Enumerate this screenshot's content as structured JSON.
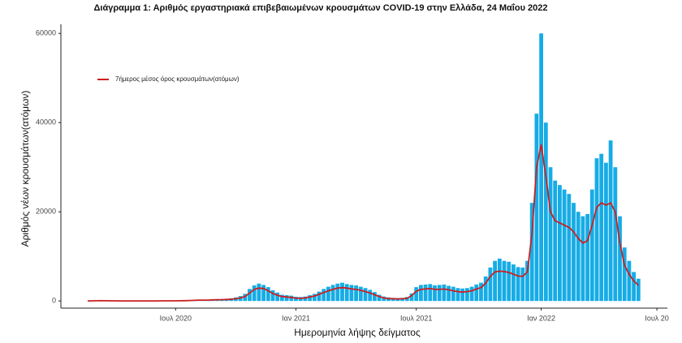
{
  "chart_data": {
    "type": "bar",
    "title": "Διάγραμμα 1: Αριθμός εργαστηριακά επιβεβαιωμένων κρουσμάτων COVID-19 στην Ελλάδα, 24 Μαΐου 2022",
    "x_label": "Ημερομηνία λήψης δείγματος",
    "y_label": "Αριθμός νέων κρουσμάτων(ατόμων)",
    "categories": [
      null,
      null,
      null,
      null,
      null,
      null,
      null,
      null,
      null,
      null,
      null,
      null,
      null,
      null,
      null,
      null,
      null,
      null,
      null,
      "Ιουλ 2020",
      null,
      null,
      null,
      null,
      null,
      null,
      null,
      null,
      null,
      null,
      null,
      null,
      null,
      null,
      null,
      null,
      null,
      null,
      null,
      null,
      null,
      null,
      null,
      null,
      null,
      "Ιαν 2021",
      null,
      null,
      null,
      null,
      null,
      null,
      null,
      null,
      null,
      null,
      null,
      null,
      null,
      null,
      null,
      null,
      null,
      null,
      null,
      null,
      null,
      null,
      null,
      null,
      null,
      "Ιουλ 2021",
      null,
      null,
      null,
      null,
      null,
      null,
      null,
      null,
      null,
      null,
      null,
      null,
      null,
      null,
      null,
      null,
      null,
      null,
      null,
      null,
      null,
      null,
      null,
      null,
      null,
      null,
      "Ιαν 2022",
      null,
      null,
      null,
      null,
      null,
      null,
      null,
      null,
      null,
      null,
      null,
      null,
      null,
      null,
      null,
      null,
      null,
      null,
      null,
      null,
      null,
      null,
      null,
      null,
      "Ιουλ 20"
    ],
    "color": "#16ace6",
    "values": [
      20,
      50,
      100,
      120,
      90,
      60,
      40,
      30,
      20,
      20,
      15,
      20,
      20,
      25,
      30,
      35,
      45,
      45,
      60,
      60,
      90,
      120,
      160,
      220,
      300,
      280,
      300,
      360,
      420,
      450,
      500,
      600,
      800,
      1100,
      1600,
      2700,
      3500,
      3900,
      3600,
      3100,
      2400,
      1900,
      1400,
      1300,
      1200,
      950,
      900,
      1000,
      1300,
      1600,
      2100,
      2700,
      3200,
      3600,
      3900,
      4100,
      3800,
      3600,
      3500,
      3200,
      2900,
      2500,
      2000,
      1400,
      1000,
      800,
      700,
      650,
      700,
      900,
      1700,
      3100,
      3600,
      3700,
      3800,
      3500,
      3600,
      3700,
      3400,
      3200,
      2900,
      2800,
      2900,
      3200,
      3700,
      4100,
      5500,
      7500,
      9000,
      9500,
      9000,
      8800,
      8200,
      7600,
      7500,
      9000,
      22000,
      42000,
      60000,
      40000,
      30000,
      27000,
      26000,
      25000,
      24000,
      22000,
      20000,
      19000,
      19500,
      25000,
      32000,
      33000,
      31000,
      36000,
      30000,
      19000,
      12000,
      9000,
      6500,
      5000,
      null,
      null,
      null,
      null
    ],
    "series": [
      {
        "name": "7ήμερος μέσος όρος κρουσμάτων(ατόμων)",
        "color": "#cc1f1f",
        "values": [
          10,
          30,
          60,
          80,
          60,
          40,
          30,
          20,
          15,
          10,
          10,
          10,
          15,
          15,
          20,
          25,
          30,
          30,
          40,
          40,
          60,
          80,
          100,
          150,
          200,
          200,
          200,
          250,
          300,
          300,
          350,
          400,
          500,
          700,
          1000,
          1800,
          2600,
          2900,
          2800,
          2300,
          1700,
          1300,
          1000,
          900,
          800,
          650,
          600,
          700,
          900,
          1100,
          1500,
          1900,
          2300,
          2600,
          2900,
          3000,
          2900,
          2700,
          2600,
          2400,
          2100,
          1800,
          1400,
          1000,
          700,
          550,
          500,
          450,
          500,
          600,
          1200,
          2200,
          2600,
          2700,
          2800,
          2600,
          2600,
          2700,
          2500,
          2300,
          2100,
          2000,
          2100,
          2300,
          2700,
          3000,
          4000,
          5500,
          6500,
          6700,
          6600,
          6400,
          6000,
          5600,
          5500,
          6500,
          15000,
          30000,
          35000,
          28000,
          20000,
          18000,
          17500,
          17000,
          16500,
          15500,
          14000,
          13000,
          13500,
          17000,
          21000,
          22000,
          21500,
          22000,
          20000,
          13000,
          8000,
          6000,
          4500,
          3500,
          null,
          null,
          null,
          null
        ]
      }
    ],
    "ylim": [
      -1600,
      61000
    ],
    "yticks": [
      0,
      20000,
      40000,
      60000
    ],
    "grid": false,
    "legend": "top-left"
  }
}
